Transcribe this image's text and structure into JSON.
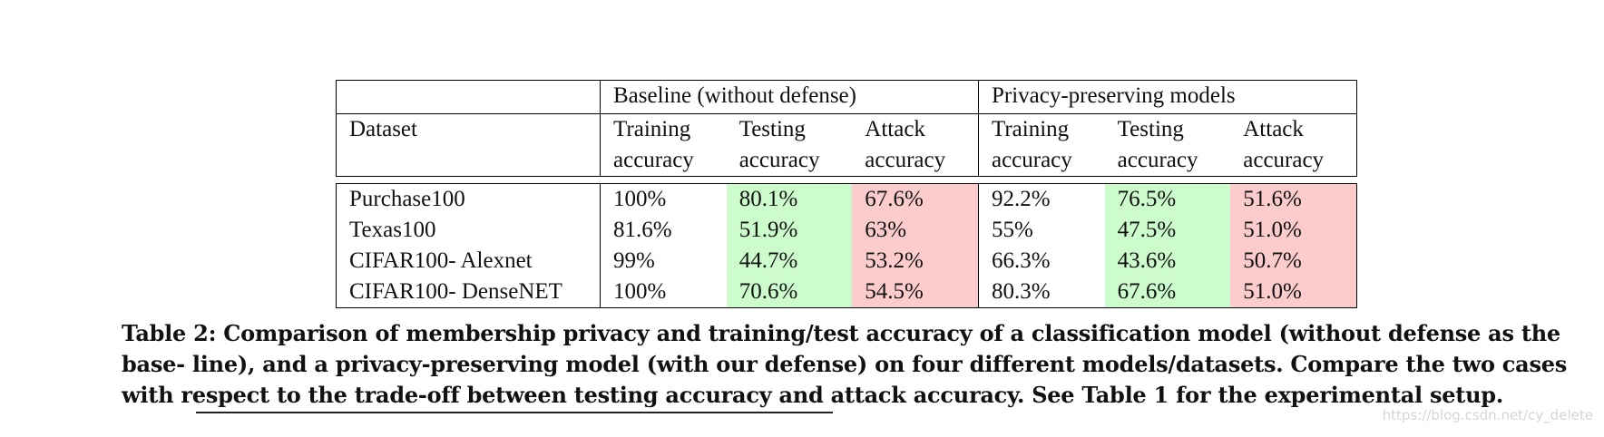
{
  "colors": {
    "testing_highlight": "#ccfccc",
    "attack_highlight": "#fccccc"
  },
  "table": {
    "group_headers": [
      "Baseline (without defense)",
      "Privacy-preserving models"
    ],
    "dataset_header": "Dataset",
    "column_headers_line1": [
      "Training",
      "Testing",
      "Attack",
      "Training",
      "Testing",
      "Attack"
    ],
    "column_headers_line2": [
      "accuracy",
      "accuracy",
      "accuracy",
      "accuracy",
      "accuracy",
      "accuracy"
    ],
    "rows": [
      {
        "dataset": "Purchase100",
        "values": [
          "100%",
          "80.1%",
          "67.6%",
          "92.2%",
          "76.5%",
          "51.6%"
        ]
      },
      {
        "dataset": "Texas100",
        "values": [
          "81.6%",
          "51.9%",
          "63%",
          "55%",
          "47.5%",
          "51.0%"
        ]
      },
      {
        "dataset": "CIFAR100- Alexnet",
        "values": [
          "99%",
          "44.7%",
          "53.2%",
          "66.3%",
          "43.6%",
          "50.7%"
        ]
      },
      {
        "dataset": "CIFAR100- DenseNET",
        "values": [
          "100%",
          "70.6%",
          "54.5%",
          "80.3%",
          "67.6%",
          "51.0%"
        ]
      }
    ]
  },
  "caption": "Table 2: Comparison of membership privacy and training/test accuracy of a classification model (without defense as the base- line), and a privacy-preserving model (with our defense) on four different models/datasets. Compare the two cases with respect to the trade-off between testing accuracy and attack accuracy. See Table 1 for the experimental setup.",
  "watermark": "https://blog.csdn.net/cy_delete"
}
